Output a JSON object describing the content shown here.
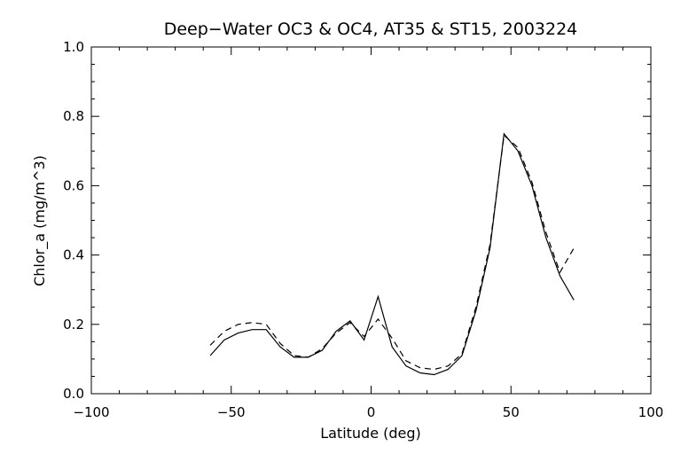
{
  "chart_data": {
    "type": "line",
    "title": "Deep−Water OC3 & OC4, AT35 & ST15, 2003224",
    "xlabel": "Latitude (deg)",
    "ylabel": "Chlor_a (mg/m^3)",
    "xlim": [
      -100,
      100
    ],
    "ylim": [
      0.0,
      1.0
    ],
    "xticks": [
      -100,
      -50,
      0,
      50,
      100
    ],
    "xtick_labels": [
      "−100",
      "−50",
      "0",
      "50",
      "100"
    ],
    "yticks": [
      0.0,
      0.2,
      0.4,
      0.6,
      0.8,
      1.0
    ],
    "ytick_labels": [
      "0.0",
      "0.2",
      "0.4",
      "0.6",
      "0.8",
      "1.0"
    ],
    "grid": false,
    "series": [
      {
        "style": "solid",
        "points": [
          [
            -57.5,
            0.11
          ],
          [
            -52.5,
            0.155
          ],
          [
            -47.5,
            0.175
          ],
          [
            -42.5,
            0.185
          ],
          [
            -37.5,
            0.185
          ],
          [
            -32.5,
            0.135
          ],
          [
            -27.5,
            0.105
          ],
          [
            -22.5,
            0.105
          ],
          [
            -17.5,
            0.125
          ],
          [
            -12.5,
            0.18
          ],
          [
            -7.5,
            0.21
          ],
          [
            -2.5,
            0.155
          ],
          [
            2.5,
            0.28
          ],
          [
            7.5,
            0.135
          ],
          [
            12.5,
            0.08
          ],
          [
            17.5,
            0.06
          ],
          [
            22.5,
            0.055
          ],
          [
            27.5,
            0.07
          ],
          [
            32.5,
            0.11
          ],
          [
            37.5,
            0.24
          ],
          [
            42.5,
            0.42
          ],
          [
            47.5,
            0.75
          ],
          [
            52.5,
            0.7
          ],
          [
            57.5,
            0.6
          ],
          [
            62.5,
            0.45
          ],
          [
            67.5,
            0.34
          ],
          [
            72.5,
            0.27
          ]
        ]
      },
      {
        "style": "dashed",
        "points": [
          [
            -57.5,
            0.14
          ],
          [
            -52.5,
            0.18
          ],
          [
            -47.5,
            0.2
          ],
          [
            -42.5,
            0.205
          ],
          [
            -37.5,
            0.2
          ],
          [
            -32.5,
            0.145
          ],
          [
            -27.5,
            0.11
          ],
          [
            -22.5,
            0.105
          ],
          [
            -17.5,
            0.13
          ],
          [
            -12.5,
            0.175
          ],
          [
            -7.5,
            0.205
          ],
          [
            -2.5,
            0.165
          ],
          [
            2.5,
            0.215
          ],
          [
            7.5,
            0.16
          ],
          [
            12.5,
            0.095
          ],
          [
            17.5,
            0.075
          ],
          [
            22.5,
            0.07
          ],
          [
            27.5,
            0.08
          ],
          [
            32.5,
            0.115
          ],
          [
            37.5,
            0.25
          ],
          [
            42.5,
            0.43
          ],
          [
            47.5,
            0.745
          ],
          [
            52.5,
            0.71
          ],
          [
            57.5,
            0.61
          ],
          [
            62.5,
            0.465
          ],
          [
            67.5,
            0.35
          ],
          [
            72.5,
            0.42
          ]
        ]
      }
    ]
  }
}
